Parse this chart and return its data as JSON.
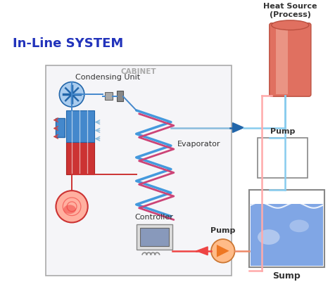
{
  "title": "In-Line SYSTEM",
  "title_color": "#2233BB",
  "bg_color": "#ffffff",
  "cabinet_label": "CABINET",
  "heat_source_label": "Heat Source\n(Process)",
  "pump_label_top": "Pump",
  "pump_label_bottom": "Pump",
  "sump_label": "Sump",
  "condensing_unit_label": "Condensing Unit",
  "evaporator_label": "Evaporator",
  "controller_label": "Controller",
  "light_blue": "#88CCEE",
  "arrow_blue": "#2266AA",
  "arrow_red": "#CC3333"
}
